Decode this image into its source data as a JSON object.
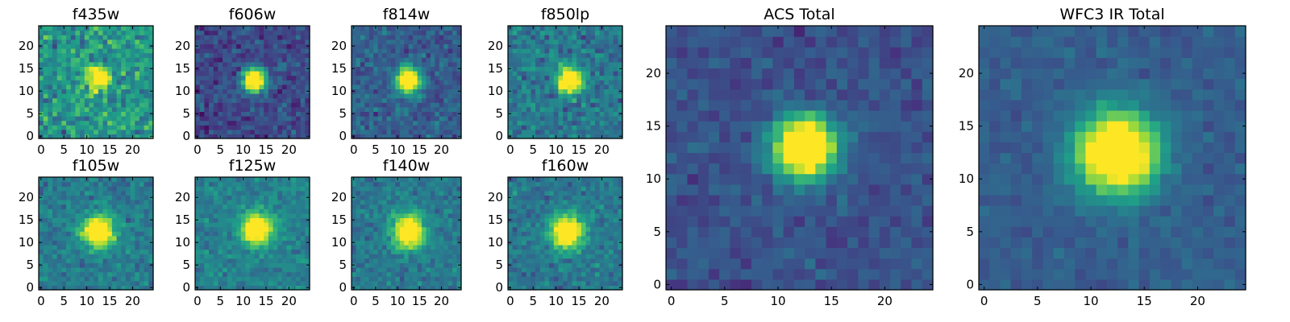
{
  "figure": {
    "colormap": "viridis",
    "colormap_stops": [
      "#440154",
      "#46327e",
      "#365c8d",
      "#277f8e",
      "#1fa187",
      "#4ac16d",
      "#a0da39",
      "#fde725"
    ]
  },
  "chart_data": [
    {
      "type": "heatmap",
      "title": "f435w",
      "grid": false,
      "nx": 25,
      "ny": 25,
      "xlim": [
        -0.5,
        24.5
      ],
      "ylim": [
        -0.5,
        24.5
      ],
      "xticks": [
        0,
        5,
        10,
        15,
        20
      ],
      "yticks": [
        0,
        5,
        10,
        15,
        20
      ],
      "source_center": [
        12.5,
        13
      ],
      "source_sigma": 1.8,
      "background": 0.52,
      "noise": 0.22,
      "peak": 0.95,
      "seed": 11
    },
    {
      "type": "heatmap",
      "title": "f606w",
      "grid": false,
      "nx": 25,
      "ny": 25,
      "xlim": [
        -0.5,
        24.5
      ],
      "ylim": [
        -0.5,
        24.5
      ],
      "xticks": [
        0,
        5,
        10,
        15,
        20
      ],
      "yticks": [
        0,
        5,
        10,
        15,
        20
      ],
      "source_center": [
        12.5,
        12.5
      ],
      "source_sigma": 1.8,
      "background": 0.22,
      "noise": 0.14,
      "peak": 0.98,
      "seed": 23
    },
    {
      "type": "heatmap",
      "title": "f814w",
      "grid": false,
      "nx": 25,
      "ny": 25,
      "xlim": [
        -0.5,
        24.5
      ],
      "ylim": [
        -0.5,
        24.5
      ],
      "xticks": [
        0,
        5,
        10,
        15,
        20
      ],
      "yticks": [
        0,
        5,
        10,
        15,
        20
      ],
      "source_center": [
        12.5,
        12.5
      ],
      "source_sigma": 1.9,
      "background": 0.3,
      "noise": 0.14,
      "peak": 0.98,
      "seed": 37
    },
    {
      "type": "heatmap",
      "title": "f850lp",
      "grid": false,
      "nx": 25,
      "ny": 25,
      "xlim": [
        -0.5,
        24.5
      ],
      "ylim": [
        -0.5,
        24.5
      ],
      "xticks": [
        0,
        5,
        10,
        15,
        20
      ],
      "yticks": [
        0,
        5,
        10,
        15,
        20
      ],
      "source_center": [
        13,
        12.5
      ],
      "source_sigma": 1.9,
      "background": 0.4,
      "noise": 0.16,
      "peak": 0.98,
      "seed": 41
    },
    {
      "type": "heatmap",
      "title": "f105w",
      "grid": false,
      "nx": 25,
      "ny": 25,
      "xlim": [
        -0.5,
        24.5
      ],
      "ylim": [
        -0.5,
        24.5
      ],
      "xticks": [
        0,
        5,
        10,
        15,
        20
      ],
      "yticks": [
        0,
        5,
        10,
        15,
        20
      ],
      "source_center": [
        12.5,
        12.5
      ],
      "source_sigma": 2.4,
      "background": 0.42,
      "noise": 0.13,
      "peak": 0.98,
      "seed": 53
    },
    {
      "type": "heatmap",
      "title": "f125w",
      "grid": false,
      "nx": 25,
      "ny": 25,
      "xlim": [
        -0.5,
        24.5
      ],
      "ylim": [
        -0.5,
        24.5
      ],
      "xticks": [
        0,
        5,
        10,
        15,
        20
      ],
      "yticks": [
        0,
        5,
        10,
        15,
        20
      ],
      "source_center": [
        13,
        13
      ],
      "source_sigma": 2.4,
      "background": 0.44,
      "noise": 0.12,
      "peak": 0.98,
      "seed": 67
    },
    {
      "type": "heatmap",
      "title": "f140w",
      "grid": false,
      "nx": 25,
      "ny": 25,
      "xlim": [
        -0.5,
        24.5
      ],
      "ylim": [
        -0.5,
        24.5
      ],
      "xticks": [
        0,
        5,
        10,
        15,
        20
      ],
      "yticks": [
        0,
        5,
        10,
        15,
        20
      ],
      "source_center": [
        12.5,
        12.5
      ],
      "source_sigma": 2.5,
      "background": 0.4,
      "noise": 0.12,
      "peak": 0.98,
      "seed": 71
    },
    {
      "type": "heatmap",
      "title": "f160w",
      "grid": false,
      "nx": 25,
      "ny": 25,
      "xlim": [
        -0.5,
        24.5
      ],
      "ylim": [
        -0.5,
        24.5
      ],
      "xticks": [
        0,
        5,
        10,
        15,
        20
      ],
      "yticks": [
        0,
        5,
        10,
        15,
        20
      ],
      "source_center": [
        12.5,
        12.5
      ],
      "source_sigma": 2.5,
      "background": 0.4,
      "noise": 0.13,
      "peak": 0.98,
      "seed": 83
    },
    {
      "type": "heatmap",
      "title": "ACS Total",
      "grid": false,
      "nx": 25,
      "ny": 25,
      "xlim": [
        -0.5,
        24.5
      ],
      "ylim": [
        -0.5,
        24.5
      ],
      "xticks": [
        0,
        5,
        10,
        15,
        20
      ],
      "yticks": [
        0,
        5,
        10,
        15,
        20
      ],
      "source_center": [
        12.5,
        13
      ],
      "source_sigma": 2.0,
      "background": 0.25,
      "noise": 0.09,
      "peak": 1.0,
      "seed": 97
    },
    {
      "type": "heatmap",
      "title": "WFC3 IR Total",
      "grid": false,
      "nx": 25,
      "ny": 25,
      "xlim": [
        -0.5,
        24.5
      ],
      "ylim": [
        -0.5,
        24.5
      ],
      "xticks": [
        0,
        5,
        10,
        15,
        20
      ],
      "yticks": [
        0,
        5,
        10,
        15,
        20
      ],
      "source_center": [
        12.5,
        12.5
      ],
      "source_sigma": 2.6,
      "background": 0.3,
      "noise": 0.07,
      "peak": 1.0,
      "seed": 101
    }
  ]
}
